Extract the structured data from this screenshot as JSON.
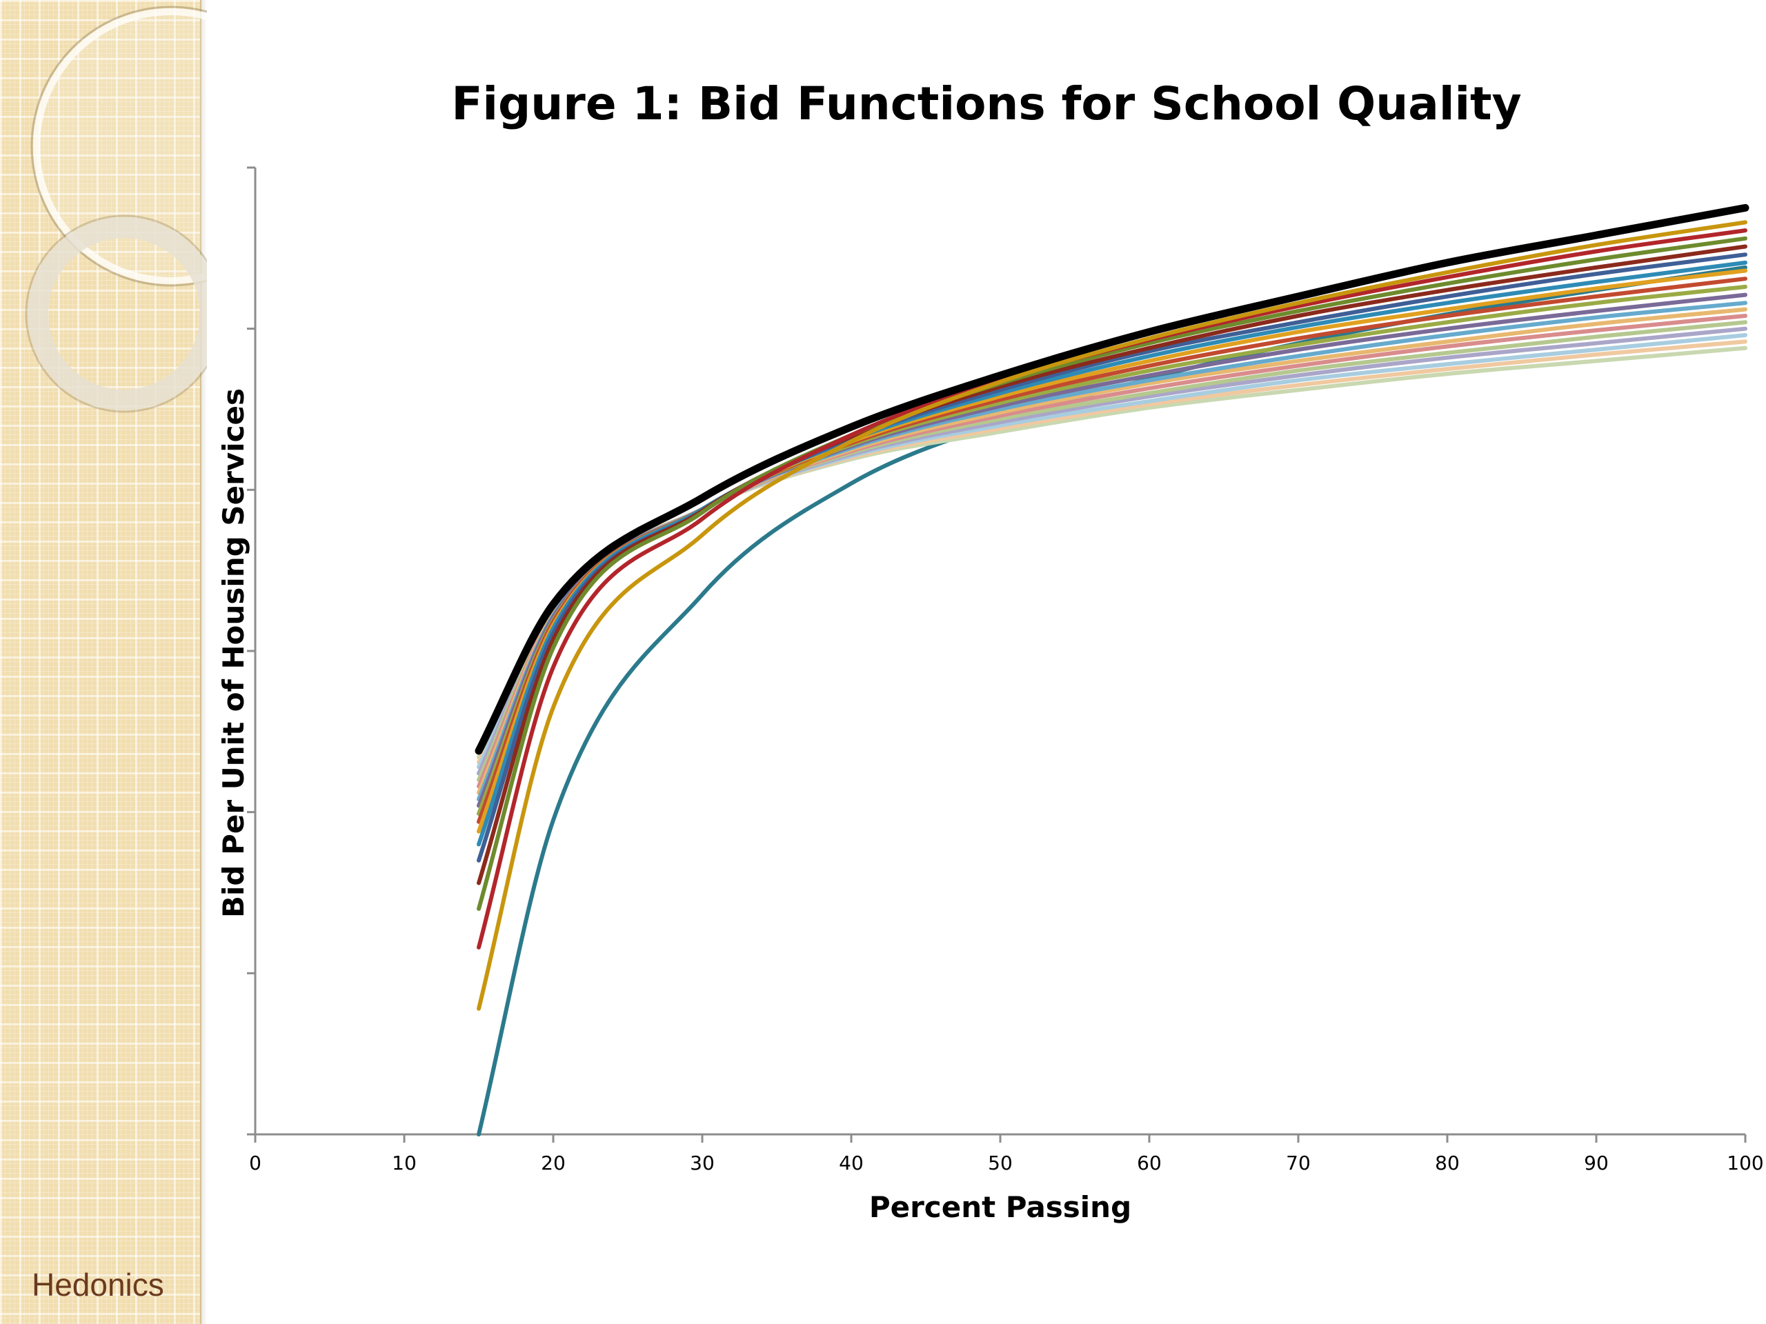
{
  "footer": {
    "label": "Hedonics"
  },
  "chart_data": {
    "type": "line",
    "title": "Figure 1: Bid Functions for School Quality",
    "xlabel": "Percent Passing",
    "ylabel": "Bid Per Unit of Housing Services",
    "xlim": [
      0,
      100
    ],
    "ylim": [
      0,
      6
    ],
    "x_ticks": [
      "0",
      "10",
      "20",
      "30",
      "40",
      "50",
      "60",
      "70",
      "80",
      "90",
      "100"
    ],
    "y_ticks_labeled": false,
    "grid": false,
    "legend": "none",
    "x": [
      15,
      20,
      30,
      40,
      50,
      60,
      70,
      80,
      90,
      100
    ],
    "series": [
      {
        "color": "#000000",
        "width": 11,
        "values": [
          2.38,
          3.29,
          3.95,
          4.39,
          4.71,
          4.98,
          5.2,
          5.41,
          5.58,
          5.75
        ]
      },
      {
        "color": "#c8960e",
        "width": 6,
        "values": [
          0.78,
          2.65,
          3.72,
          4.3,
          4.67,
          4.94,
          5.16,
          5.35,
          5.52,
          5.66
        ]
      },
      {
        "color": "#b2262b",
        "width": 6,
        "values": [
          1.16,
          2.9,
          3.82,
          4.34,
          4.68,
          4.93,
          5.14,
          5.32,
          5.48,
          5.61
        ]
      },
      {
        "color": "#6e8b2d",
        "width": 6,
        "values": [
          1.4,
          3.02,
          3.86,
          4.34,
          4.66,
          4.91,
          5.11,
          5.28,
          5.43,
          5.56
        ]
      },
      {
        "color": "#8b2a1c",
        "width": 6,
        "values": [
          1.56,
          3.07,
          3.87,
          4.33,
          4.64,
          4.88,
          5.08,
          5.24,
          5.38,
          5.51
        ]
      },
      {
        "color": "#3f5f96",
        "width": 6,
        "values": [
          1.7,
          3.11,
          3.87,
          4.32,
          4.62,
          4.86,
          5.04,
          5.2,
          5.34,
          5.46
        ]
      },
      {
        "color": "#2e8bb5",
        "width": 6,
        "values": [
          1.8,
          3.14,
          3.88,
          4.31,
          4.6,
          4.83,
          5.01,
          5.16,
          5.29,
          5.41
        ]
      },
      {
        "color": "#e0a020",
        "width": 6,
        "values": [
          1.88,
          3.16,
          3.88,
          4.3,
          4.58,
          4.8,
          4.98,
          5.12,
          5.25,
          5.36
        ]
      },
      {
        "color": "#c24a2f",
        "width": 6,
        "values": [
          1.94,
          3.18,
          3.88,
          4.29,
          4.56,
          4.77,
          4.94,
          5.08,
          5.2,
          5.31
        ]
      },
      {
        "color": "#9aab45",
        "width": 6,
        "values": [
          1.99,
          3.19,
          3.88,
          4.28,
          4.54,
          4.74,
          4.9,
          5.04,
          5.16,
          5.26
        ]
      },
      {
        "color": "#7a6a98",
        "width": 6,
        "values": [
          2.04,
          3.21,
          3.88,
          4.27,
          4.52,
          4.71,
          4.87,
          5.0,
          5.11,
          5.21
        ]
      },
      {
        "color": "#66aacd",
        "width": 6,
        "values": [
          2.08,
          3.22,
          3.88,
          4.26,
          4.5,
          4.68,
          4.83,
          4.96,
          5.07,
          5.16
        ]
      },
      {
        "color": "#e8b870",
        "width": 6,
        "values": [
          2.12,
          3.23,
          3.88,
          4.25,
          4.48,
          4.66,
          4.8,
          4.92,
          5.03,
          5.12
        ]
      },
      {
        "color": "#d98c8c",
        "width": 6,
        "values": [
          2.16,
          3.24,
          3.88,
          4.24,
          4.46,
          4.63,
          4.77,
          4.89,
          4.99,
          5.08
        ]
      },
      {
        "color": "#b5c88f",
        "width": 6,
        "values": [
          2.2,
          3.25,
          3.88,
          4.23,
          4.44,
          4.6,
          4.74,
          4.85,
          4.95,
          5.04
        ]
      },
      {
        "color": "#a9a6c9",
        "width": 6,
        "values": [
          2.24,
          3.26,
          3.88,
          4.22,
          4.42,
          4.58,
          4.71,
          4.82,
          4.91,
          5.0
        ]
      },
      {
        "color": "#a8cde0",
        "width": 6,
        "values": [
          2.28,
          3.27,
          3.88,
          4.21,
          4.4,
          4.55,
          4.68,
          4.78,
          4.87,
          4.96
        ]
      },
      {
        "color": "#f0c9a0",
        "width": 6,
        "values": [
          2.31,
          3.28,
          3.88,
          4.2,
          4.38,
          4.53,
          4.65,
          4.75,
          4.84,
          4.92
        ]
      },
      {
        "color": "#c9d8b0",
        "width": 6,
        "values": [
          2.34,
          3.29,
          3.88,
          4.19,
          4.36,
          4.51,
          4.62,
          4.72,
          4.8,
          4.88
        ]
      },
      {
        "color": "#2b7a8c",
        "width": 6,
        "values": [
          0.0,
          1.95,
          3.35,
          4.04,
          4.42,
          4.69,
          4.91,
          5.09,
          5.24,
          5.38
        ]
      }
    ]
  }
}
